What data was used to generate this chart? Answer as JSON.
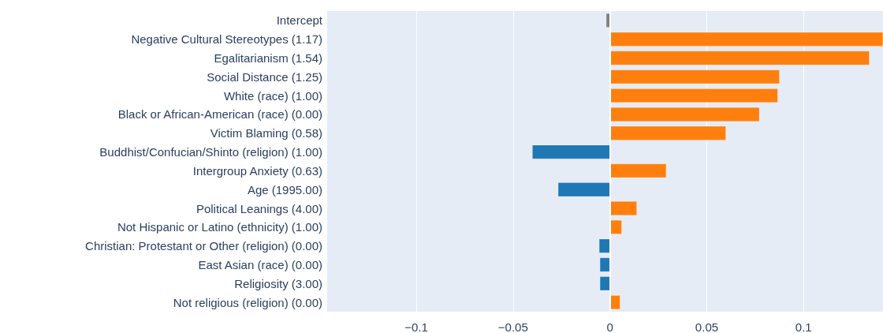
{
  "chart_data": {
    "type": "bar",
    "orientation": "horizontal",
    "categories": [
      "Intercept",
      "Negative Cultural Stereotypes (1.17)",
      "Egalitarianism (1.54)",
      "Social Distance (1.25)",
      "White (race) (1.00)",
      "Black or African-American (race) (0.00)",
      "Victim Blaming (0.58)",
      "Buddhist/Confucian/Shinto (religion) (1.00)",
      "Intergroup Anxiety (0.63)",
      "Age (1995.00)",
      "Political Leanings (4.00)",
      "Not Hispanic or Latino (ethnicity) (1.00)",
      "Christian: Protestant or Other (religion) (0.00)",
      "East Asian (race) (0.00)",
      "Religiosity (3.00)",
      "Not religious (religion) (0.00)"
    ],
    "values": [
      -0.002,
      0.141,
      0.134,
      0.0876,
      0.0867,
      0.0772,
      0.0599,
      -0.0401,
      0.0291,
      -0.0268,
      0.0139,
      0.0061,
      -0.0056,
      -0.0052,
      -0.0052,
      0.0053
    ],
    "colors": [
      "#808080",
      "#ff7f0e",
      "#ff7f0e",
      "#ff7f0e",
      "#ff7f0e",
      "#ff7f0e",
      "#ff7f0e",
      "#1f77b4",
      "#ff7f0e",
      "#1f77b4",
      "#ff7f0e",
      "#ff7f0e",
      "#1f77b4",
      "#1f77b4",
      "#1f77b4",
      "#ff7f0e"
    ],
    "xlim": [
      -0.146,
      0.141
    ],
    "xticks": [
      {
        "value": -0.1,
        "label": "−0.1"
      },
      {
        "value": -0.05,
        "label": "−0.05"
      },
      0,
      0.05,
      0.1
    ],
    "grid": "x"
  }
}
